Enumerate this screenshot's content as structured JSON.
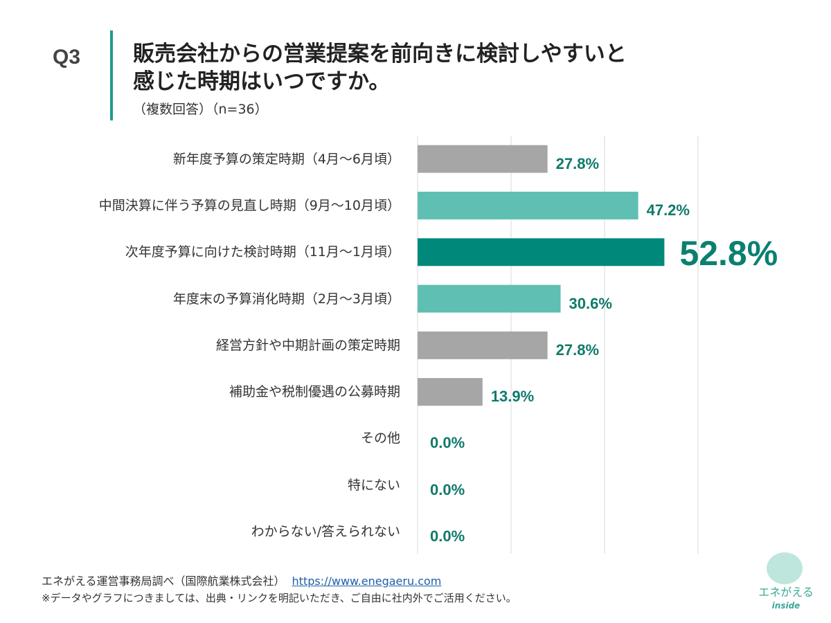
{
  "header": {
    "question_no": "Q3",
    "title_line1": "販売会社からの営業提案を前向きに検討しやすいと",
    "title_line2": "感じた時期はいつですか。",
    "subtitle": "（複数回答）（n=36）"
  },
  "chart_data": {
    "type": "bar",
    "orientation": "horizontal",
    "xlim": [
      0,
      60
    ],
    "grid": true,
    "grid_ticks": [
      0,
      20,
      40,
      60
    ],
    "colors": {
      "gray": "#a6a6a6",
      "light": "#5fbfb3",
      "dark": "#00897b",
      "label": "#0e7a6a"
    },
    "categories": [
      "新年度予算の策定時期（4月〜6月頃）",
      "中間決算に伴う予算の見直し時期（9月〜10月頃）",
      "次年度予算に向けた検討時期（11月〜1月頃）",
      "年度末の予算消化時期（2月〜3月頃）",
      "経営方針や中期計画の策定時期",
      "補助金や税制優遇の公募時期",
      "その他",
      "特にない",
      "わからない/答えられない"
    ],
    "values": [
      27.8,
      47.2,
      52.8,
      30.6,
      27.8,
      13.9,
      0.0,
      0.0,
      0.0
    ],
    "value_labels": [
      "27.8%",
      "47.2%",
      "52.8%",
      "30.6%",
      "27.8%",
      "13.9%",
      "0.0%",
      "0.0%",
      "0.0%"
    ],
    "bar_styles": [
      "gray",
      "light",
      "dark",
      "light",
      "gray",
      "gray",
      "gray",
      "gray",
      "gray"
    ],
    "highlight_index": 2
  },
  "footer": {
    "source": "エネがえる運営事務局調べ（国際航業株式会社）",
    "url": "https://www.enegaeru.com",
    "note": "※データやグラフにつきましては、出典・リンクを明記いただき、ご自由に社内外でご活用ください。"
  },
  "logo": {
    "name": "エネがえる",
    "sub": "inside"
  }
}
